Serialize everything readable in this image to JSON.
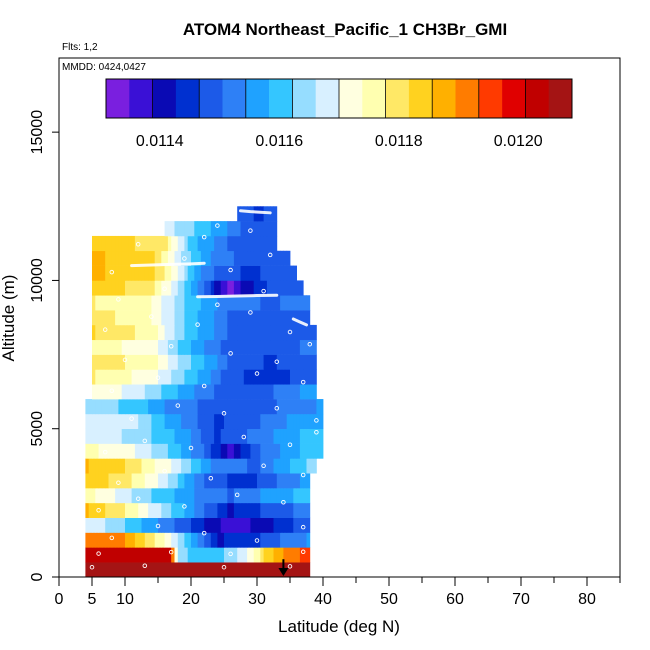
{
  "chart_data": {
    "type": "heatmap",
    "title": "ATOM4 Northeast_Pacific_1 CH3Br_GMI",
    "flights_label": "Flts: 1,2",
    "dates_label": "MMDD: 0424,0427",
    "xlabel": "Latitude (deg N)",
    "ylabel": "Altitude (m)",
    "xlim": [
      0,
      85
    ],
    "ylim": [
      0,
      17500
    ],
    "x_ticks": [
      0,
      5,
      10,
      20,
      30,
      40,
      50,
      60,
      70,
      80
    ],
    "x_tick_labels": [
      "0",
      "5",
      "10",
      "20",
      "30",
      "40",
      "50",
      "60",
      "70",
      "80"
    ],
    "y_ticks": [
      0,
      5000,
      10000,
      15000
    ],
    "y_tick_labels": [
      "0",
      "5000",
      "10000",
      "15000"
    ],
    "colorbar": {
      "vmin": 0.01131,
      "vmax": 0.01209,
      "ticks": [
        0.0114,
        0.0116,
        0.0118,
        0.012
      ],
      "tick_labels": [
        "0.0114",
        "0.0116",
        "0.0118",
        "0.0120"
      ],
      "colors": [
        "#7a1fdf",
        "#3a10d6",
        "#0a0ab4",
        "#0030d0",
        "#1c5ae8",
        "#2e80f6",
        "#1fa2ff",
        "#34c6ff",
        "#96ddff",
        "#d8f0ff",
        "#ffffe0",
        "#ffffb0",
        "#ffe866",
        "#ffd21f",
        "#ffb000",
        "#ff7c00",
        "#ff3a00",
        "#e00000",
        "#c00000",
        "#a41414"
      ]
    },
    "bands": [
      {
        "y0": 0,
        "y1": 500,
        "x0": 4,
        "x1": 38,
        "profile": [
          [
            4,
            0.01207
          ],
          [
            38,
            0.01207
          ]
        ]
      },
      {
        "y0": 500,
        "y1": 1000,
        "x0": 4,
        "x1": 38,
        "profile": [
          [
            4,
            0.01203
          ],
          [
            17,
            0.01203
          ],
          [
            18,
            0.01163
          ],
          [
            24,
            0.0116
          ],
          [
            28,
            0.01168
          ],
          [
            32,
            0.01185
          ],
          [
            35,
            0.01192
          ],
          [
            38,
            0.01195
          ]
        ]
      },
      {
        "y0": 1000,
        "y1": 1500,
        "x0": 4,
        "x1": 38,
        "profile": [
          [
            4,
            0.01192
          ],
          [
            10,
            0.0119
          ],
          [
            16,
            0.01174
          ],
          [
            24,
            0.01142
          ],
          [
            30,
            0.01146
          ],
          [
            35,
            0.01152
          ],
          [
            38,
            0.01155
          ]
        ]
      },
      {
        "y0": 1500,
        "y1": 2000,
        "x0": 4,
        "x1": 38,
        "profile": [
          [
            4,
            0.0117
          ],
          [
            10,
            0.01162
          ],
          [
            18,
            0.0115
          ],
          [
            26,
            0.01136
          ],
          [
            32,
            0.01142
          ],
          [
            38,
            0.0115
          ]
        ]
      },
      {
        "y0": 2000,
        "y1": 2500,
        "x0": 4,
        "x1": 38,
        "profile": [
          [
            4,
            0.01186
          ],
          [
            10,
            0.01178
          ],
          [
            18,
            0.0116
          ],
          [
            26,
            0.01142
          ],
          [
            32,
            0.01148
          ],
          [
            38,
            0.01152
          ]
        ]
      },
      {
        "y0": 2500,
        "y1": 3000,
        "x0": 4,
        "x1": 38,
        "profile": [
          [
            4,
            0.01176
          ],
          [
            12,
            0.01165
          ],
          [
            20,
            0.01155
          ],
          [
            26,
            0.0115
          ],
          [
            32,
            0.01156
          ],
          [
            38,
            0.0116
          ]
        ]
      },
      {
        "y0": 3000,
        "y1": 3500,
        "x0": 4,
        "x1": 38,
        "profile": [
          [
            4,
            0.01184
          ],
          [
            10,
            0.0118
          ],
          [
            16,
            0.01168
          ],
          [
            22,
            0.0115
          ],
          [
            28,
            0.01144
          ],
          [
            34,
            0.01152
          ],
          [
            38,
            0.01156
          ]
        ]
      },
      {
        "y0": 3500,
        "y1": 4000,
        "x0": 4,
        "x1": 39,
        "profile": [
          [
            4,
            0.01186
          ],
          [
            10,
            0.01182
          ],
          [
            18,
            0.01168
          ],
          [
            24,
            0.01152
          ],
          [
            30,
            0.0115
          ],
          [
            36,
            0.0116
          ],
          [
            39,
            0.01165
          ]
        ]
      },
      {
        "y0": 4000,
        "y1": 4500,
        "x0": 4,
        "x1": 40,
        "profile": [
          [
            4,
            0.01175
          ],
          [
            10,
            0.01172
          ],
          [
            18,
            0.0116
          ],
          [
            22,
            0.0115
          ],
          [
            26,
            0.01138
          ],
          [
            30,
            0.0115
          ],
          [
            36,
            0.01158
          ],
          [
            40,
            0.0116
          ]
        ]
      },
      {
        "y0": 4500,
        "y1": 5000,
        "x0": 4,
        "x1": 40,
        "profile": [
          [
            4,
            0.01168
          ],
          [
            10,
            0.01166
          ],
          [
            18,
            0.01158
          ],
          [
            24,
            0.01146
          ],
          [
            30,
            0.01152
          ],
          [
            36,
            0.01158
          ],
          [
            40,
            0.0116
          ]
        ]
      },
      {
        "y0": 5000,
        "y1": 5500,
        "x0": 4,
        "x1": 40,
        "profile": [
          [
            4,
            0.0117
          ],
          [
            12,
            0.01166
          ],
          [
            18,
            0.01155
          ],
          [
            24,
            0.01146
          ],
          [
            30,
            0.0115
          ],
          [
            36,
            0.01156
          ],
          [
            40,
            0.01158
          ]
        ]
      },
      {
        "y0": 5500,
        "y1": 6000,
        "x0": 4,
        "x1": 40,
        "profile": [
          [
            4,
            0.01166
          ],
          [
            12,
            0.0116
          ],
          [
            18,
            0.01152
          ],
          [
            26,
            0.01148
          ],
          [
            32,
            0.0115
          ],
          [
            40,
            0.01155
          ]
        ]
      },
      {
        "y0": 6000,
        "y1": 6500,
        "x0": 5,
        "x1": 39,
        "profile": [
          [
            5,
            0.01174
          ],
          [
            12,
            0.01168
          ],
          [
            18,
            0.01158
          ],
          [
            24,
            0.0115
          ],
          [
            30,
            0.01148
          ],
          [
            36,
            0.01154
          ],
          [
            39,
            0.01156
          ]
        ]
      },
      {
        "y0": 6500,
        "y1": 7000,
        "x0": 5,
        "x1": 39,
        "profile": [
          [
            5,
            0.01178
          ],
          [
            14,
            0.01172
          ],
          [
            20,
            0.0116
          ],
          [
            26,
            0.01148
          ],
          [
            32,
            0.01144
          ],
          [
            39,
            0.0115
          ]
        ]
      },
      {
        "y0": 7000,
        "y1": 7500,
        "x0": 5,
        "x1": 39,
        "profile": [
          [
            5,
            0.0118
          ],
          [
            14,
            0.01176
          ],
          [
            20,
            0.01162
          ],
          [
            26,
            0.0115
          ],
          [
            32,
            0.01146
          ],
          [
            39,
            0.0115
          ]
        ]
      },
      {
        "y0": 7500,
        "y1": 8000,
        "x0": 5,
        "x1": 39,
        "profile": [
          [
            5,
            0.01176
          ],
          [
            14,
            0.01172
          ],
          [
            20,
            0.01158
          ],
          [
            26,
            0.01148
          ],
          [
            32,
            0.01148
          ],
          [
            39,
            0.01152
          ]
        ]
      },
      {
        "y0": 8000,
        "y1": 8500,
        "x0": 5,
        "x1": 39,
        "profile": [
          [
            5,
            0.01182
          ],
          [
            14,
            0.01176
          ],
          [
            20,
            0.0116
          ],
          [
            26,
            0.0115
          ],
          [
            32,
            0.01148
          ],
          [
            39,
            0.01148
          ]
        ]
      },
      {
        "y0": 8500,
        "y1": 9000,
        "x0": 5,
        "x1": 38,
        "profile": [
          [
            5,
            0.0118
          ],
          [
            14,
            0.01174
          ],
          [
            20,
            0.0116
          ],
          [
            26,
            0.0115
          ],
          [
            32,
            0.01148
          ],
          [
            38,
            0.0115
          ]
        ]
      },
      {
        "y0": 9000,
        "y1": 9500,
        "x0": 5,
        "x1": 38,
        "profile": [
          [
            5,
            0.01178
          ],
          [
            14,
            0.01174
          ],
          [
            20,
            0.0116
          ],
          [
            26,
            0.01152
          ],
          [
            32,
            0.0115
          ],
          [
            38,
            0.01152
          ]
        ]
      },
      {
        "y0": 9500,
        "y1": 10000,
        "x0": 5,
        "x1": 37,
        "profile": [
          [
            5,
            0.01184
          ],
          [
            14,
            0.0118
          ],
          [
            18,
            0.01166
          ],
          [
            22,
            0.0115
          ],
          [
            26,
            0.01132
          ],
          [
            28,
            0.0114
          ],
          [
            32,
            0.01148
          ],
          [
            37,
            0.0115
          ]
        ]
      },
      {
        "y0": 10000,
        "y1": 10500,
        "x0": 5,
        "x1": 36,
        "profile": [
          [
            5,
            0.01186
          ],
          [
            14,
            0.01184
          ],
          [
            18,
            0.0117
          ],
          [
            22,
            0.01152
          ],
          [
            28,
            0.01146
          ],
          [
            36,
            0.01148
          ]
        ]
      },
      {
        "y0": 10500,
        "y1": 11000,
        "x0": 5,
        "x1": 35,
        "profile": [
          [
            5,
            0.01186
          ],
          [
            14,
            0.01184
          ],
          [
            18,
            0.01168
          ],
          [
            24,
            0.01152
          ],
          [
            30,
            0.01148
          ],
          [
            35,
            0.0115
          ]
        ]
      },
      {
        "y0": 11000,
        "y1": 11500,
        "x0": 5,
        "x1": 33,
        "profile": [
          [
            5,
            0.01184
          ],
          [
            16,
            0.0118
          ],
          [
            20,
            0.0116
          ],
          [
            26,
            0.0115
          ],
          [
            33,
            0.0115
          ]
        ]
      },
      {
        "y0": 11500,
        "y1": 12000,
        "x0": 16,
        "x1": 33,
        "profile": [
          [
            16,
            0.01168
          ],
          [
            22,
            0.0116
          ],
          [
            28,
            0.0115
          ],
          [
            33,
            0.0115
          ]
        ]
      },
      {
        "y0": 12000,
        "y1": 12500,
        "x0": 27,
        "x1": 33,
        "profile": [
          [
            27,
            0.0115
          ],
          [
            30,
            0.01146
          ],
          [
            33,
            0.01148
          ]
        ]
      }
    ],
    "flight_tracks": [
      {
        "lat": [
          21,
          24,
          27,
          30,
          33
        ],
        "alt": [
          9450,
          9460,
          9475,
          9490,
          9500
        ]
      },
      {
        "lat": [
          11,
          14,
          17,
          20,
          22
        ],
        "alt": [
          10500,
          10520,
          10540,
          10560,
          10580
        ]
      },
      {
        "lat": [
          27.5,
          29,
          30.5,
          32
        ],
        "alt": [
          12350,
          12320,
          12300,
          12280
        ]
      },
      {
        "lat": [
          35.5,
          36.5,
          37.5
        ],
        "alt": [
          8700,
          8600,
          8500
        ]
      }
    ],
    "sample_points": [
      {
        "lat": 5,
        "alt": 330
      },
      {
        "lat": 6,
        "alt": 790
      },
      {
        "lat": 13,
        "alt": 380
      },
      {
        "lat": 17,
        "alt": 840
      },
      {
        "lat": 25,
        "alt": 330
      },
      {
        "lat": 26,
        "alt": 780
      },
      {
        "lat": 35,
        "alt": 360
      },
      {
        "lat": 37,
        "alt": 850
      },
      {
        "lat": 8,
        "alt": 1320
      },
      {
        "lat": 15,
        "alt": 1720
      },
      {
        "lat": 22,
        "alt": 1480
      },
      {
        "lat": 30,
        "alt": 1230
      },
      {
        "lat": 37,
        "alt": 1680
      },
      {
        "lat": 6,
        "alt": 2250
      },
      {
        "lat": 12,
        "alt": 2640
      },
      {
        "lat": 19,
        "alt": 2380
      },
      {
        "lat": 27,
        "alt": 2770
      },
      {
        "lat": 34,
        "alt": 2520
      },
      {
        "lat": 9,
        "alt": 3180
      },
      {
        "lat": 16,
        "alt": 3570
      },
      {
        "lat": 23,
        "alt": 3330
      },
      {
        "lat": 31,
        "alt": 3750
      },
      {
        "lat": 37,
        "alt": 3440
      },
      {
        "lat": 7,
        "alt": 4210
      },
      {
        "lat": 13,
        "alt": 4590
      },
      {
        "lat": 20,
        "alt": 4350
      },
      {
        "lat": 28,
        "alt": 4720
      },
      {
        "lat": 35,
        "alt": 4460
      },
      {
        "lat": 39,
        "alt": 4880
      },
      {
        "lat": 11,
        "alt": 5340
      },
      {
        "lat": 18,
        "alt": 5780
      },
      {
        "lat": 25,
        "alt": 5520
      },
      {
        "lat": 33,
        "alt": 5690
      },
      {
        "lat": 39,
        "alt": 5280
      },
      {
        "lat": 8,
        "alt": 6280
      },
      {
        "lat": 15,
        "alt": 6720
      },
      {
        "lat": 22,
        "alt": 6440
      },
      {
        "lat": 30,
        "alt": 6860
      },
      {
        "lat": 37,
        "alt": 6570
      },
      {
        "lat": 10,
        "alt": 7320
      },
      {
        "lat": 17,
        "alt": 7780
      },
      {
        "lat": 26,
        "alt": 7540
      },
      {
        "lat": 33,
        "alt": 7260
      },
      {
        "lat": 38,
        "alt": 7850
      },
      {
        "lat": 7,
        "alt": 8340
      },
      {
        "lat": 14,
        "alt": 8780
      },
      {
        "lat": 21,
        "alt": 8510
      },
      {
        "lat": 29,
        "alt": 8920
      },
      {
        "lat": 35,
        "alt": 8260
      },
      {
        "lat": 9,
        "alt": 9360
      },
      {
        "lat": 16,
        "alt": 9720
      },
      {
        "lat": 24,
        "alt": 9180
      },
      {
        "lat": 31,
        "alt": 9640
      },
      {
        "lat": 8,
        "alt": 10280
      },
      {
        "lat": 19,
        "alt": 10740
      },
      {
        "lat": 26,
        "alt": 10350
      },
      {
        "lat": 32,
        "alt": 10860
      },
      {
        "lat": 12,
        "alt": 11220
      },
      {
        "lat": 22,
        "alt": 11460
      },
      {
        "lat": 29,
        "alt": 11680
      },
      {
        "lat": 24,
        "alt": 11850
      }
    ],
    "arrow": {
      "lat": 34,
      "alt_from": 600,
      "alt_to": 0
    }
  }
}
